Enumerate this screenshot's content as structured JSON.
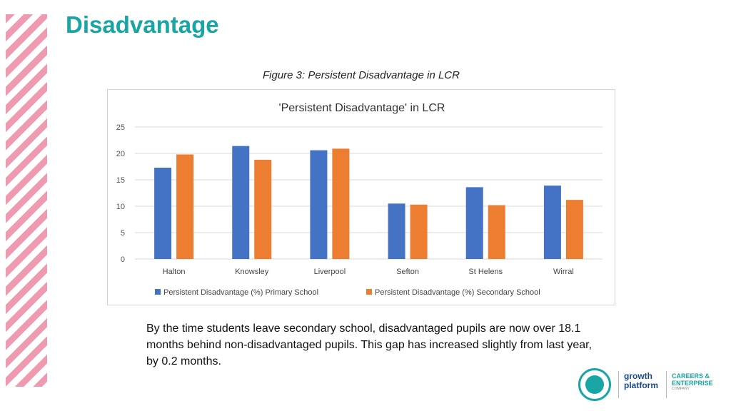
{
  "slide": {
    "title": "Disadvantage",
    "figure_caption": "Figure 3: Persistent Disadvantage in LCR",
    "body_text": "By the time students leave secondary school, disadvantaged pupils are now over 18.1 months behind non-disadvantaged pupils. This gap has increased slightly from last year, by 0.2 months."
  },
  "logos": {
    "growth_line1": "growth",
    "growth_line2": "platform",
    "careers_line1": "CAREERS &",
    "careers_line2": "ENTERPRISE",
    "careers_line3": "COMPANY"
  },
  "chart_data": {
    "type": "bar",
    "title": "'Persistent Disadvantage' in LCR",
    "xlabel": "",
    "ylabel": "",
    "categories": [
      "Halton",
      "Knowsley",
      "Liverpool",
      "Sefton",
      "St Helens",
      "Wirral"
    ],
    "series": [
      {
        "name": "Persistent Disadvantage (%) Primary School",
        "color": "#4472c4",
        "values": [
          17.3,
          21.4,
          20.6,
          10.5,
          13.6,
          13.9
        ]
      },
      {
        "name": "Persistent Disadvantage (%) Secondary School",
        "color": "#ed7d31",
        "values": [
          19.8,
          18.8,
          20.9,
          10.3,
          10.2,
          11.2
        ]
      }
    ],
    "ylim": [
      0,
      25
    ],
    "yticks": [
      0,
      5,
      10,
      15,
      20,
      25
    ],
    "grid": true,
    "legend": "bottom"
  }
}
